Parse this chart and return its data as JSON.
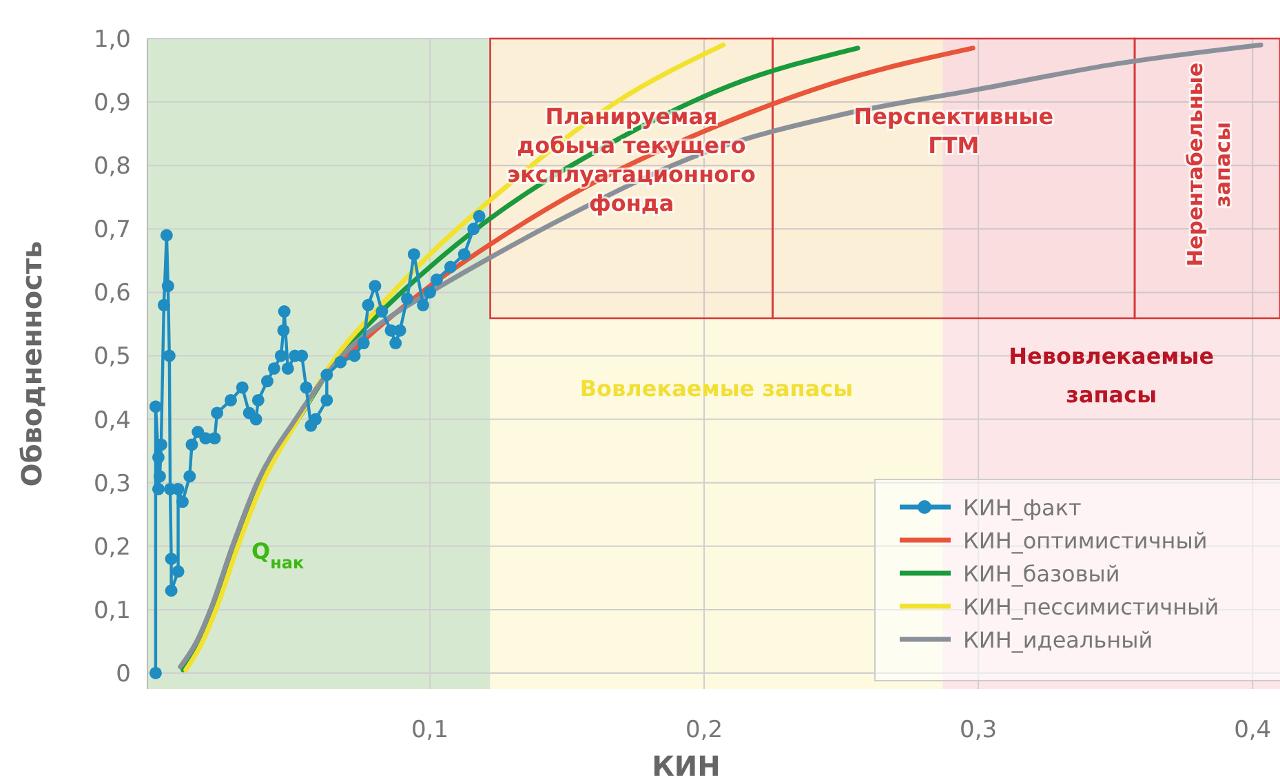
{
  "chart_data": {
    "type": "line",
    "xlabel": "КИН",
    "ylabel": "Обводненность",
    "xlim": [
      -0.003,
      0.41
    ],
    "ylim": [
      -0.025,
      1.0
    ],
    "xticks": [
      {
        "value": 0.1,
        "label": "0,1"
      },
      {
        "value": 0.2,
        "label": "0,2"
      },
      {
        "value": 0.3,
        "label": "0,3"
      },
      {
        "value": 0.4,
        "label": "0,4"
      }
    ],
    "yticks": [
      {
        "value": 0,
        "label": "0"
      },
      {
        "value": 0.1,
        "label": "0,1"
      },
      {
        "value": 0.2,
        "label": "0,2"
      },
      {
        "value": 0.3,
        "label": "0,3"
      },
      {
        "value": 0.4,
        "label": "0,4"
      },
      {
        "value": 0.5,
        "label": "0,5"
      },
      {
        "value": 0.6,
        "label": "0,6"
      },
      {
        "value": 0.7,
        "label": "0,7"
      },
      {
        "value": 0.8,
        "label": "0,8"
      },
      {
        "value": 0.9,
        "label": "0,9"
      },
      {
        "value": 1.0,
        "label": "1,0"
      }
    ],
    "grid": true,
    "legend": "bottom right",
    "bands": [
      {
        "axis": "x",
        "from": -0.003,
        "to": 0.122,
        "label": "Q$_{нак}$",
        "color": "#d6e9d0"
      },
      {
        "axis": "x",
        "from": 0.122,
        "to": 0.287,
        "label": "Вовлекаемые запасы",
        "color": "#fdfae0"
      },
      {
        "axis": "x",
        "from": 0.287,
        "to": 0.41,
        "label": "Невовлекаемые\nзапасы",
        "color": "#fce6e8"
      },
      {
        "axis": "x",
        "from": 0.122,
        "to": 0.225,
        "label": "Планируемая\nдобыча текущего\nэксплуатационного\nфонда",
        "color": "#d63a3a"
      },
      {
        "axis": "x",
        "from": 0.225,
        "to": 0.357,
        "label": "Перспективные\nГТМ",
        "color": "#d63a3a"
      },
      {
        "axis": "x",
        "from": 0.357,
        "to": 0.41,
        "label": "Нерентабельные\nзапасы",
        "color": "#d63a3a"
      }
    ],
    "series": [
      {
        "name": "КИН_факт",
        "color": "#1f8dc1",
        "marker": "circle",
        "x": [
          0,
          0,
          0.001,
          0.001,
          0.0015,
          0.002,
          0.003,
          0.004,
          0.0045,
          0.005,
          0.0053,
          0.0057,
          0.0057,
          0.0082,
          0.0082,
          0.0098,
          0.0124,
          0.0132,
          0.0154,
          0.0182,
          0.0215,
          0.0224,
          0.0274,
          0.0316,
          0.0341,
          0.0366,
          0.0374,
          0.0407,
          0.0432,
          0.0457,
          0.0466,
          0.0469,
          0.0482,
          0.0508,
          0.0533,
          0.0549,
          0.0566,
          0.0583,
          0.0624,
          0.0624,
          0.0674,
          0.0725,
          0.0758,
          0.0775,
          0.08,
          0.0825,
          0.0858,
          0.0875,
          0.0891,
          0.0917,
          0.0942,
          0.0975,
          0.1,
          0.1025,
          0.1075,
          0.1125,
          0.1159,
          0.118
        ],
        "values": [
          0,
          0.42,
          0.34,
          0.29,
          0.31,
          0.36,
          0.58,
          0.69,
          0.61,
          0.5,
          0.29,
          0.18,
          0.13,
          0.16,
          0.29,
          0.27,
          0.31,
          0.36,
          0.38,
          0.37,
          0.37,
          0.41,
          0.43,
          0.45,
          0.41,
          0.4,
          0.43,
          0.46,
          0.48,
          0.5,
          0.54,
          0.57,
          0.48,
          0.5,
          0.5,
          0.45,
          0.39,
          0.4,
          0.43,
          0.47,
          0.49,
          0.5,
          0.52,
          0.58,
          0.61,
          0.57,
          0.54,
          0.52,
          0.54,
          0.59,
          0.66,
          0.58,
          0.6,
          0.62,
          0.64,
          0.66,
          0.7,
          0.72
        ]
      },
      {
        "name": "КИН_оптимистичный",
        "color": "#e8553a",
        "marker": "none",
        "x": [
          0.0675,
          0.08,
          0.1,
          0.12,
          0.15,
          0.209,
          0.251,
          0.298
        ],
        "values": [
          0.49,
          0.54,
          0.61,
          0.67,
          0.75,
          0.87,
          0.935,
          0.985
        ]
      },
      {
        "name": "КИН_базовый",
        "color": "#1a9a3c",
        "marker": "none",
        "x": [
          0.01,
          0.016,
          0.021,
          0.029,
          0.038,
          0.052,
          0.067,
          0.08,
          0.1,
          0.12,
          0.168,
          0.209,
          0.256
        ],
        "values": [
          0.005,
          0.05,
          0.1,
          0.2,
          0.3,
          0.4,
          0.5,
          0.56,
          0.64,
          0.71,
          0.84,
          0.925,
          0.985
        ]
      },
      {
        "name": "КИН_пессимистичный",
        "color": "#f2e22e",
        "marker": "none",
        "x": [
          0.011,
          0.016,
          0.022,
          0.03,
          0.039,
          0.052,
          0.066,
          0.08,
          0.1,
          0.126,
          0.168,
          0.207
        ],
        "values": [
          0.005,
          0.04,
          0.1,
          0.2,
          0.3,
          0.4,
          0.5,
          0.57,
          0.66,
          0.76,
          0.9,
          0.99
        ]
      },
      {
        "name": "КИН_идеальный",
        "color": "#8a9099",
        "marker": "none",
        "x": [
          0.009,
          0.015,
          0.02,
          0.028,
          0.037,
          0.051,
          0.068,
          0.085,
          0.1,
          0.12,
          0.15,
          0.2,
          0.25,
          0.3,
          0.35,
          0.403
        ],
        "values": [
          0.01,
          0.05,
          0.1,
          0.2,
          0.3,
          0.4,
          0.5,
          0.56,
          0.6,
          0.65,
          0.72,
          0.82,
          0.88,
          0.92,
          0.96,
          0.99
        ]
      }
    ]
  }
}
